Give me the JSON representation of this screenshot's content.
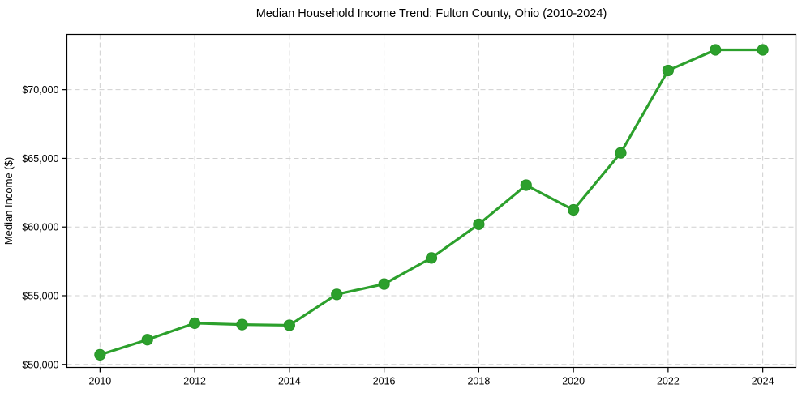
{
  "chart_data": {
    "type": "line",
    "title": "Median Household Income Trend: Fulton County, Ohio (2010-2024)",
    "xlabel": "",
    "ylabel": "Median Income ($)",
    "x": [
      2010,
      2011,
      2012,
      2013,
      2014,
      2015,
      2016,
      2017,
      2018,
      2019,
      2020,
      2021,
      2022,
      2023,
      2024
    ],
    "series": [
      {
        "name": "Median household income",
        "values": [
          50700,
          51800,
          53000,
          52900,
          52850,
          55100,
          55850,
          57750,
          60200,
          63050,
          61250,
          65400,
          71400,
          72900,
          72900
        ]
      }
    ],
    "xlim": [
      2009.3,
      2024.7
    ],
    "ylim": [
      49780,
      74020
    ],
    "xticks": [
      2010,
      2012,
      2014,
      2016,
      2018,
      2020,
      2022,
      2024
    ],
    "xtick_labels": [
      "2010",
      "2012",
      "2014",
      "2016",
      "2018",
      "2020",
      "2022",
      "2024"
    ],
    "yticks": [
      50000,
      55000,
      60000,
      65000,
      70000
    ],
    "ytick_labels": [
      "$50,000",
      "$55,000",
      "$60,000",
      "$65,000",
      "$70,000"
    ],
    "grid": true,
    "legend": "none",
    "colors": {
      "line": "#2ca02c",
      "marker_fill": "#2ca02c",
      "marker_edge": "#279327",
      "gridline": "#d0d0d0",
      "spine": "#000000",
      "background": "#ffffff"
    },
    "marker": "circle"
  }
}
